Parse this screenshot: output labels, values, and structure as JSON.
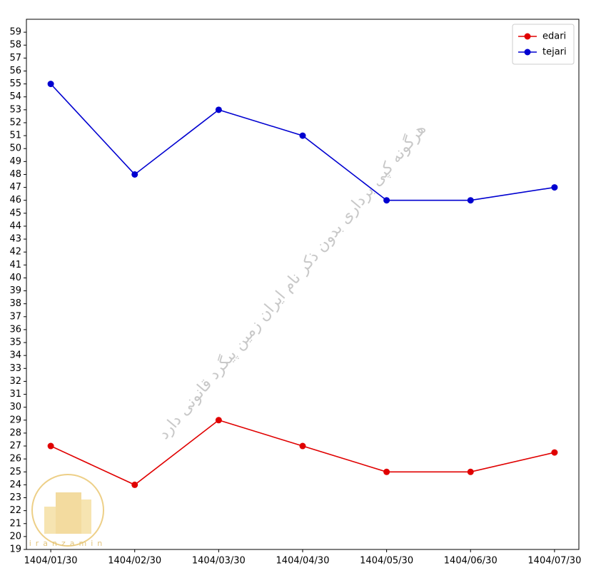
{
  "chart_data": {
    "type": "line",
    "categories": [
      "1404/01/30",
      "1404/02/30",
      "1404/03/30",
      "1404/04/30",
      "1404/05/30",
      "1404/06/30",
      "1404/07/30"
    ],
    "series": [
      {
        "name": "edari",
        "color": "#e00000",
        "values": [
          27,
          24,
          29,
          27,
          25,
          25,
          26.5
        ]
      },
      {
        "name": "tejari",
        "color": "#0000d0",
        "values": [
          55,
          48,
          53,
          51,
          46,
          46,
          47
        ]
      }
    ],
    "ylim": [
      19,
      60
    ],
    "yticks": [
      19,
      20,
      21,
      22,
      23,
      24,
      25,
      26,
      27,
      28,
      29,
      30,
      31,
      32,
      33,
      34,
      35,
      36,
      37,
      38,
      39,
      40,
      41,
      42,
      43,
      44,
      45,
      46,
      47,
      48,
      49,
      50,
      51,
      52,
      53,
      54,
      55,
      56,
      57,
      58,
      59
    ],
    "legend": "upper right",
    "watermark": "هرگونه کپی برداری بدون ذکر نام ایران زمین پیگرد قانونی دارد",
    "logo_text": "iranzamin"
  }
}
